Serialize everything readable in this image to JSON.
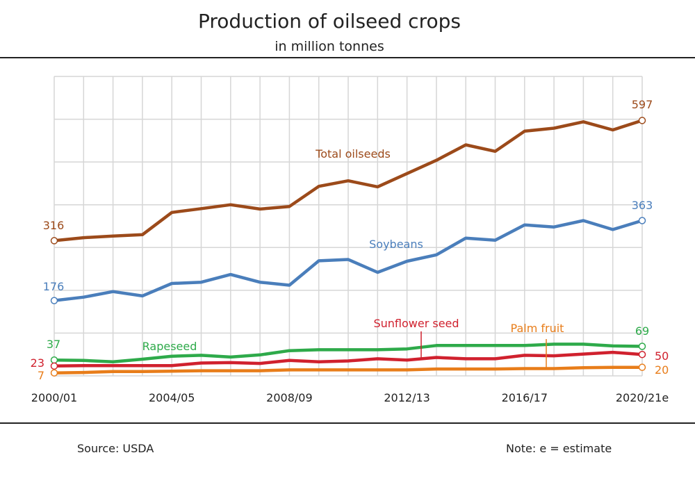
{
  "title": "Production  of oilseed crops",
  "subtitle": "in million tonnes",
  "footer": {
    "source": "Source: USDA",
    "note": "Note: e = estimate"
  },
  "chart_data": {
    "type": "line",
    "title": "Production  of oilseed crops",
    "subtitle": "in million tonnes",
    "xlabel": "",
    "ylabel": "",
    "x": [
      "2000/01",
      "2001/02",
      "2002/03",
      "2003/04",
      "2004/05",
      "2005/06",
      "2006/07",
      "2007/08",
      "2008/09",
      "2009/10",
      "2010/11",
      "2011/12",
      "2012/13",
      "2013/14",
      "2014/15",
      "2015/16",
      "2016/17",
      "2017/18",
      "2018/19",
      "2019/20",
      "2020/21e"
    ],
    "tick_labels": [
      "2000/01",
      "2004/05",
      "2008/09",
      "2012/13",
      "2016/17",
      "2020/21e"
    ],
    "tick_indices": [
      0,
      4,
      8,
      12,
      16,
      20
    ],
    "ylim": [
      0,
      700
    ],
    "grid": true,
    "legend": "inline labels",
    "series": [
      {
        "name": "Total oilseeds",
        "color": "#9c4a1a",
        "values": [
          316,
          323,
          327,
          330,
          382,
          391,
          400,
          390,
          396,
          443,
          456,
          442,
          473,
          504,
          540,
          525,
          572,
          579,
          594,
          575,
          597
        ],
        "start_label": "316",
        "end_label": "597"
      },
      {
        "name": "Soybeans",
        "color": "#4a7ebb",
        "values": [
          176,
          184,
          197,
          187,
          216,
          219,
          237,
          219,
          212,
          269,
          272,
          242,
          268,
          283,
          322,
          317,
          353,
          348,
          363,
          342,
          363
        ],
        "start_label": "176",
        "end_label": "363"
      },
      {
        "name": "Rapeseed",
        "color": "#2eaa4a",
        "values": [
          37,
          36,
          33,
          39,
          46,
          48,
          44,
          49,
          59,
          61,
          61,
          61,
          63,
          71,
          71,
          71,
          71,
          74,
          74,
          70,
          69
        ],
        "start_label": "37",
        "end_label": "69"
      },
      {
        "name": "Sunflower seed",
        "color": "#d0212e",
        "values": [
          23,
          24,
          24,
          24,
          24,
          30,
          31,
          29,
          36,
          33,
          35,
          40,
          37,
          43,
          40,
          40,
          48,
          47,
          51,
          55,
          50
        ],
        "start_label": "23",
        "end_label": "50"
      },
      {
        "name": "Palm fruit",
        "color": "#e87d1a",
        "values": [
          7,
          8,
          10,
          10,
          11,
          12,
          12,
          12,
          14,
          14,
          14,
          14,
          14,
          16,
          16,
          16,
          17,
          17,
          19,
          20,
          20
        ],
        "start_label": "7",
        "end_label": "20"
      }
    ]
  }
}
